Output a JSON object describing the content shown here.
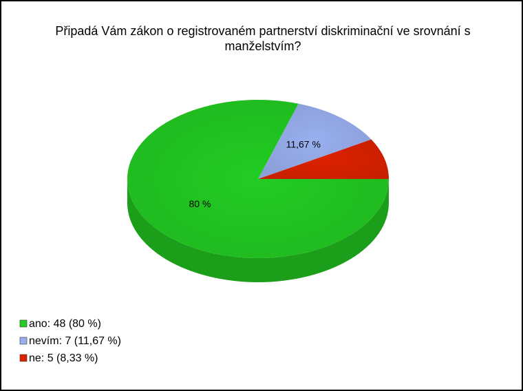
{
  "chart_data": {
    "type": "pie",
    "title": "Připadá Vám zákon o registrovaném partnerství diskriminační ve srovnání s manželstvím?",
    "categories": [
      "ano",
      "nevím",
      "ne"
    ],
    "values": [
      80,
      11.67,
      8.33
    ],
    "value_labels": [
      "80 %",
      "11,67 %",
      null
    ],
    "legend_labels": [
      "ano: 48 (80 %)",
      "nevím: 7 (11,67 %)",
      "ne: 5 (8,33 %)"
    ],
    "colors": [
      "#22cc22",
      "#99b0f0",
      "#dd2200"
    ]
  }
}
